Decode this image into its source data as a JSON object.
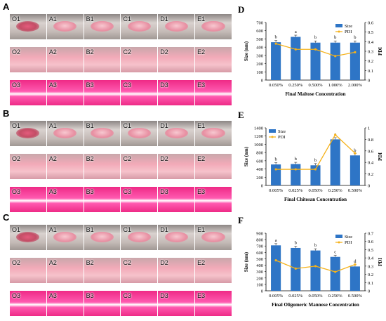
{
  "panels": {
    "A": {
      "letter": "A",
      "rows": [
        [
          "O1",
          "A1",
          "B1",
          "C1",
          "D1",
          "E1"
        ],
        [
          "O2",
          "A2",
          "B2",
          "C2",
          "D2",
          "E2"
        ],
        [
          "O3",
          "A3",
          "B3",
          "C3",
          "D3",
          "E3"
        ]
      ]
    },
    "B": {
      "letter": "B",
      "rows": [
        [
          "O1",
          "A1",
          "B1",
          "C1",
          "D1",
          "E1"
        ],
        [
          "O2",
          "A2",
          "B2",
          "C2",
          "D2",
          "E2"
        ],
        [
          "O3",
          "A3",
          "B3",
          "C3",
          "D3",
          "E3"
        ]
      ]
    },
    "C": {
      "letter": "C",
      "rows": [
        [
          "O1",
          "A1",
          "B1",
          "C1",
          "D1",
          "E1"
        ],
        [
          "O2",
          "A2",
          "B2",
          "C2",
          "D2",
          "E2"
        ],
        [
          "O3",
          "A3",
          "B3",
          "C3",
          "D3",
          "E3"
        ]
      ]
    }
  },
  "colors": {
    "bar": "#2e75c6",
    "line": "#f5b21b",
    "gel_top": "#b9aaa6",
    "liquid": "#f2aab8",
    "fluor": "#ee2a86"
  },
  "chart_data": [
    {
      "id": "D",
      "letter": "D",
      "type": "bar+line",
      "categories": [
        "0.050%",
        "0.250%",
        "0.500%",
        "1.000%",
        "2.000%"
      ],
      "series": [
        {
          "name": "Size",
          "type": "bar",
          "axis": "left",
          "values": [
            460,
            525,
            455,
            455,
            455
          ],
          "letters": [
            "b",
            "a",
            "b",
            "b",
            "b"
          ]
        },
        {
          "name": "PDI",
          "type": "line",
          "axis": "right",
          "values": [
            0.38,
            0.32,
            0.32,
            0.25,
            0.29
          ]
        }
      ],
      "xlabel": "Final Maltose Concentration",
      "ylabel": "Size (nm)",
      "y2label": "PDI",
      "ylim": [
        0,
        700
      ],
      "yticks": [
        0,
        100,
        200,
        300,
        400,
        500,
        600,
        700
      ],
      "y2lim": [
        0,
        0.6
      ],
      "y2ticks": [
        0,
        0.1,
        0.2,
        0.3,
        0.4,
        0.5,
        0.6
      ],
      "legend": "top-right"
    },
    {
      "id": "E",
      "letter": "E",
      "type": "bar+line",
      "categories": [
        "0.005%",
        "0.025%",
        "0.050%",
        "0.250%",
        "0.500%"
      ],
      "series": [
        {
          "name": "Size",
          "type": "bar",
          "axis": "left",
          "values": [
            510,
            520,
            490,
            1120,
            730
          ],
          "letters": [
            "b",
            "b",
            "b",
            "a",
            "b"
          ]
        },
        {
          "name": "PDI",
          "type": "line",
          "axis": "right",
          "values": [
            0.28,
            0.28,
            0.28,
            0.88,
            0.56
          ]
        }
      ],
      "xlabel": "Final Chitosan Concentration",
      "ylabel": "Size (nm)",
      "y2label": "PDI",
      "ylim": [
        0,
        1400
      ],
      "yticks": [
        0,
        200,
        400,
        600,
        800,
        1000,
        1200,
        1400
      ],
      "y2lim": [
        0,
        1.0
      ],
      "y2ticks": [
        0,
        0.2,
        0.4,
        0.6,
        0.8,
        1.0
      ],
      "legend": "top-left"
    },
    {
      "id": "F",
      "letter": "F",
      "type": "bar+line",
      "categories": [
        "0.005%",
        "0.025%",
        "0.050%",
        "0.250%",
        "0.500%"
      ],
      "series": [
        {
          "name": "Size",
          "type": "bar",
          "axis": "left",
          "values": [
            710,
            670,
            630,
            530,
            380
          ],
          "letters": [
            "a",
            "b",
            "b",
            "c",
            "d"
          ]
        },
        {
          "name": "PDI",
          "type": "line",
          "axis": "right",
          "values": [
            0.37,
            0.27,
            0.3,
            0.23,
            0.32
          ]
        }
      ],
      "xlabel": "Final Oligomeric Mannose Concentration",
      "ylabel": "Size (nm)",
      "y2label": "PDI",
      "ylim": [
        0,
        900
      ],
      "yticks": [
        0,
        100,
        200,
        300,
        400,
        500,
        600,
        700,
        800,
        900
      ],
      "y2lim": [
        0,
        0.7
      ],
      "y2ticks": [
        0,
        0.1,
        0.2,
        0.3,
        0.4,
        0.5,
        0.6,
        0.7
      ],
      "legend": "top-right"
    }
  ]
}
